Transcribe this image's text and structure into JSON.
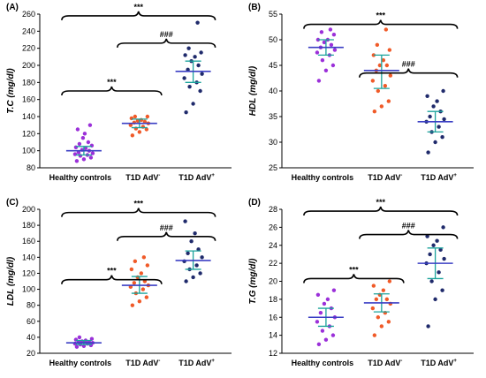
{
  "chart_data": [
    {
      "type": "scatter",
      "panel_label": "(A)",
      "ylabel": "T.C (mg/dl)",
      "ylim": [
        80,
        260
      ],
      "yticks": [
        80,
        100,
        120,
        140,
        160,
        180,
        200,
        220,
        240,
        260
      ],
      "categories": [
        "Healthy controls",
        "T1D AdV",
        "T1D AdV"
      ],
      "category_superscripts": [
        "",
        "-",
        "+"
      ],
      "groups": [
        {
          "color": "#9B30D9",
          "mean": 100,
          "error": [
            95,
            105
          ],
          "points": [
            88,
            90,
            92,
            94,
            95,
            96,
            97,
            98,
            100,
            101,
            103,
            104,
            106,
            108,
            110,
            115,
            120,
            125,
            130
          ]
        },
        {
          "color": "#F05A28",
          "mean": 132,
          "error": [
            127,
            137
          ],
          "points": [
            118,
            122,
            125,
            126,
            128,
            130,
            132,
            133,
            134,
            135,
            136,
            138,
            140,
            140
          ]
        },
        {
          "color": "#1F2A6B",
          "mean": 193,
          "error": [
            180,
            205
          ],
          "points": [
            145,
            155,
            170,
            175,
            180,
            185,
            190,
            195,
            200,
            205,
            210,
            212,
            215,
            220,
            250
          ]
        }
      ],
      "comparisons": [
        {
          "from": 0,
          "to": 1,
          "label": "***",
          "y": 170
        },
        {
          "from": 1,
          "to": 2,
          "label": "###",
          "y": 226
        },
        {
          "from": 0,
          "to": 2,
          "label": "***",
          "y": 258
        }
      ]
    },
    {
      "type": "scatter",
      "panel_label": "(B)",
      "ylabel": "HDL (mg/dl)",
      "ylim": [
        25,
        55
      ],
      "yticks": [
        25,
        30,
        35,
        40,
        45,
        50,
        55
      ],
      "categories": [
        "Healthy controls",
        "T1D AdV",
        "T1D AdV"
      ],
      "category_superscripts": [
        "",
        "-",
        "+"
      ],
      "groups": [
        {
          "color": "#9B30D9",
          "mean": 48.5,
          "error": [
            47,
            50
          ],
          "points": [
            42,
            44,
            45,
            46,
            47,
            47.5,
            48,
            48.5,
            49,
            49.5,
            50,
            50,
            51,
            51.5,
            52
          ]
        },
        {
          "color": "#F05A28",
          "mean": 44,
          "error": [
            40.5,
            47
          ],
          "points": [
            36,
            37,
            38,
            40,
            41,
            42,
            43,
            44,
            45,
            45,
            46,
            47,
            48,
            49,
            52
          ]
        },
        {
          "color": "#1F2A6B",
          "mean": 34,
          "error": [
            32,
            36
          ],
          "points": [
            28,
            30,
            31,
            32,
            33,
            34,
            34.5,
            35,
            36,
            37,
            38,
            39,
            40
          ]
        }
      ],
      "comparisons": [
        {
          "from": 1,
          "to": 2,
          "label": "###",
          "y": 43.5
        },
        {
          "from": 0,
          "to": 2,
          "label": "***",
          "y": 53
        }
      ]
    },
    {
      "type": "scatter",
      "panel_label": "(C)",
      "ylabel": "LDL (mg/dl)",
      "ylim": [
        20,
        200
      ],
      "yticks": [
        20,
        40,
        60,
        80,
        100,
        120,
        140,
        160,
        180,
        200
      ],
      "categories": [
        "Healthy controls",
        "T1D AdV",
        "T1D AdV"
      ],
      "category_superscripts": [
        "",
        "-",
        "+"
      ],
      "groups": [
        {
          "color": "#9B30D9",
          "mean": 33,
          "error": [
            31,
            36
          ],
          "points": [
            28,
            29,
            30,
            31,
            32,
            32,
            33,
            34,
            34,
            35,
            36,
            37,
            38,
            40
          ]
        },
        {
          "color": "#F05A28",
          "mean": 105,
          "error": [
            95,
            116
          ],
          "points": [
            80,
            85,
            90,
            95,
            100,
            103,
            105,
            108,
            110,
            115,
            120,
            125,
            130,
            135,
            140
          ]
        },
        {
          "color": "#1F2A6B",
          "mean": 136,
          "error": [
            125,
            148
          ],
          "points": [
            110,
            115,
            120,
            125,
            130,
            135,
            140,
            145,
            150,
            160,
            170,
            185
          ]
        }
      ],
      "comparisons": [
        {
          "from": 0,
          "to": 1,
          "label": "***",
          "y": 112
        },
        {
          "from": 1,
          "to": 2,
          "label": "###",
          "y": 166
        },
        {
          "from": 0,
          "to": 2,
          "label": "***",
          "y": 196
        }
      ]
    },
    {
      "type": "scatter",
      "panel_label": "(D)",
      "ylabel": "T.G (mg/dl)",
      "ylim": [
        12,
        28
      ],
      "yticks": [
        12,
        14,
        16,
        18,
        20,
        22,
        24,
        26,
        28
      ],
      "categories": [
        "Healthy controls",
        "T1D AdV",
        "T1D AdV"
      ],
      "category_superscripts": [
        "",
        "-",
        "+"
      ],
      "groups": [
        {
          "color": "#9B30D9",
          "mean": 16,
          "error": [
            15,
            17
          ],
          "points": [
            13,
            13.5,
            14,
            14.5,
            15,
            15.5,
            16,
            16.5,
            17,
            17.5,
            18,
            18.5,
            19
          ]
        },
        {
          "color": "#F05A28",
          "mean": 17.6,
          "error": [
            16.6,
            18.6
          ],
          "points": [
            14,
            15,
            15.5,
            16,
            16.5,
            17,
            17.5,
            18,
            18,
            18.5,
            19,
            19.5,
            20
          ]
        },
        {
          "color": "#1F2A6B",
          "mean": 22,
          "error": [
            20.3,
            23.7
          ],
          "points": [
            15,
            18,
            19,
            20,
            21,
            22,
            22.5,
            23,
            23.5,
            24,
            24.5,
            25,
            26
          ]
        }
      ],
      "comparisons": [
        {
          "from": 0,
          "to": 1,
          "label": "***",
          "y": 20.3
        },
        {
          "from": 1,
          "to": 2,
          "label": "###",
          "y": 25.2
        },
        {
          "from": 0,
          "to": 2,
          "label": "***",
          "y": 27.8
        }
      ]
    }
  ]
}
